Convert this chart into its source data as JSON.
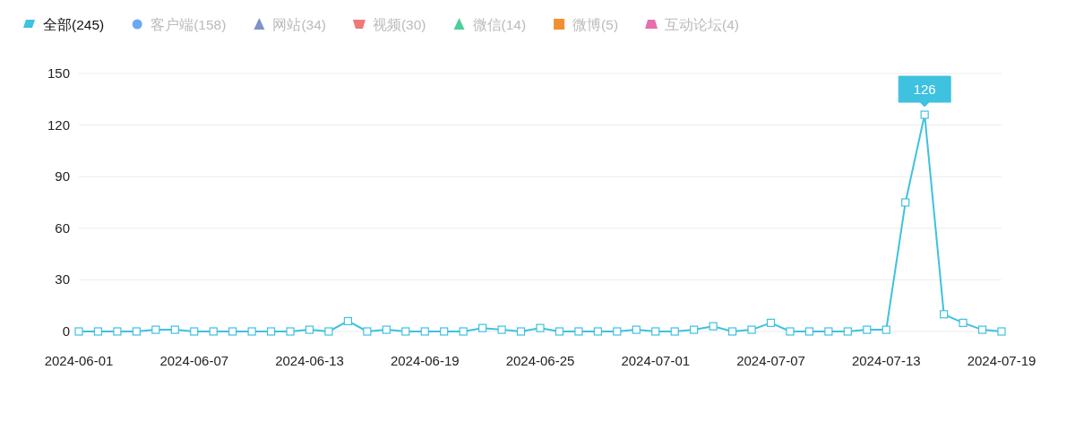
{
  "chart_data": {
    "type": "line",
    "x": [
      "2024-06-01",
      "2024-06-02",
      "2024-06-03",
      "2024-06-04",
      "2024-06-05",
      "2024-06-06",
      "2024-06-07",
      "2024-06-08",
      "2024-06-09",
      "2024-06-10",
      "2024-06-11",
      "2024-06-12",
      "2024-06-13",
      "2024-06-14",
      "2024-06-15",
      "2024-06-16",
      "2024-06-17",
      "2024-06-18",
      "2024-06-19",
      "2024-06-20",
      "2024-06-21",
      "2024-06-22",
      "2024-06-23",
      "2024-06-24",
      "2024-06-25",
      "2024-06-26",
      "2024-06-27",
      "2024-06-28",
      "2024-06-29",
      "2024-06-30",
      "2024-07-01",
      "2024-07-02",
      "2024-07-03",
      "2024-07-04",
      "2024-07-05",
      "2024-07-06",
      "2024-07-07",
      "2024-07-08",
      "2024-07-09",
      "2024-07-10",
      "2024-07-11",
      "2024-07-12",
      "2024-07-13",
      "2024-07-14",
      "2024-07-15",
      "2024-07-16",
      "2024-07-17",
      "2024-07-18",
      "2024-07-19"
    ],
    "series": [
      {
        "name": "全部(245)",
        "color": "#3fc1e0",
        "values": [
          0,
          0,
          0,
          0,
          1,
          1,
          0,
          0,
          0,
          0,
          0,
          0,
          1,
          0,
          6,
          0,
          1,
          0,
          0,
          0,
          0,
          2,
          1,
          0,
          2,
          0,
          0,
          0,
          0,
          1,
          0,
          0,
          1,
          3,
          0,
          1,
          5,
          0,
          0,
          0,
          0,
          1,
          1,
          75,
          126,
          10,
          5,
          1,
          0
        ]
      },
      {
        "name": "客户端(158)",
        "color": "#6aa8f7",
        "values": [
          null,
          null,
          null,
          null,
          null,
          null,
          null,
          null,
          null,
          null,
          null,
          null,
          null,
          null,
          null,
          null,
          null,
          null,
          null,
          null,
          null,
          null,
          null,
          null,
          null,
          null,
          null,
          null,
          null,
          null,
          null,
          null,
          null,
          null,
          null,
          null,
          null,
          null,
          null,
          null,
          null,
          null,
          null,
          null,
          null,
          null,
          null,
          null,
          null
        ]
      },
      {
        "name": "网站(34)",
        "color": "#7b93c6",
        "values": [
          null,
          null,
          null,
          null,
          null,
          null,
          null,
          null,
          null,
          null,
          null,
          null,
          null,
          null,
          null,
          null,
          null,
          null,
          null,
          null,
          null,
          null,
          null,
          null,
          null,
          null,
          null,
          null,
          null,
          null,
          null,
          null,
          null,
          null,
          null,
          null,
          null,
          null,
          null,
          null,
          null,
          null,
          null,
          null,
          null,
          null,
          null,
          null,
          null
        ]
      },
      {
        "name": "视频(30)",
        "color": "#f0787a",
        "values": [
          null,
          null,
          null,
          null,
          null,
          null,
          null,
          null,
          null,
          null,
          null,
          null,
          null,
          null,
          null,
          null,
          null,
          null,
          null,
          null,
          null,
          null,
          null,
          null,
          null,
          null,
          null,
          null,
          null,
          null,
          null,
          null,
          null,
          null,
          null,
          null,
          null,
          null,
          null,
          null,
          null,
          null,
          null,
          null,
          null,
          null,
          null,
          null,
          null
        ]
      },
      {
        "name": "微信(14)",
        "color": "#4cce9a",
        "values": [
          null,
          null,
          null,
          null,
          null,
          null,
          null,
          null,
          null,
          null,
          null,
          null,
          null,
          null,
          null,
          null,
          null,
          null,
          null,
          null,
          null,
          null,
          null,
          null,
          null,
          null,
          null,
          null,
          null,
          null,
          null,
          null,
          null,
          null,
          null,
          null,
          null,
          null,
          null,
          null,
          null,
          null,
          null,
          null,
          null,
          null,
          null,
          null,
          null
        ]
      },
      {
        "name": "微博(5)",
        "color": "#f0902f",
        "values": [
          null,
          null,
          null,
          null,
          null,
          null,
          null,
          null,
          null,
          null,
          null,
          null,
          null,
          null,
          null,
          null,
          null,
          null,
          null,
          null,
          null,
          null,
          null,
          null,
          null,
          null,
          null,
          null,
          null,
          null,
          null,
          null,
          null,
          null,
          null,
          null,
          null,
          null,
          null,
          null,
          null,
          null,
          null,
          null,
          null,
          null,
          null,
          null,
          null
        ]
      },
      {
        "name": "互动论坛(4)",
        "color": "#e86fae",
        "values": [
          null,
          null,
          null,
          null,
          null,
          null,
          null,
          null,
          null,
          null,
          null,
          null,
          null,
          null,
          null,
          null,
          null,
          null,
          null,
          null,
          null,
          null,
          null,
          null,
          null,
          null,
          null,
          null,
          null,
          null,
          null,
          null,
          null,
          null,
          null,
          null,
          null,
          null,
          null,
          null,
          null,
          null,
          null,
          null,
          null,
          null,
          null,
          null,
          null
        ]
      }
    ],
    "xlim": [
      "2024-06-01",
      "2024-07-19"
    ],
    "xticks": [
      "2024-06-01",
      "2024-06-07",
      "2024-06-13",
      "2024-06-19",
      "2024-06-25",
      "2024-07-01",
      "2024-07-07",
      "2024-07-13",
      "2024-07-19"
    ],
    "ylim": [
      0,
      150
    ],
    "yticks": [
      0,
      30,
      60,
      90,
      120,
      150
    ],
    "annotations": [
      {
        "text": "126",
        "x": "2024-07-15",
        "y": 126
      }
    ],
    "grid": "y",
    "legend": "top left",
    "marker": "square"
  }
}
